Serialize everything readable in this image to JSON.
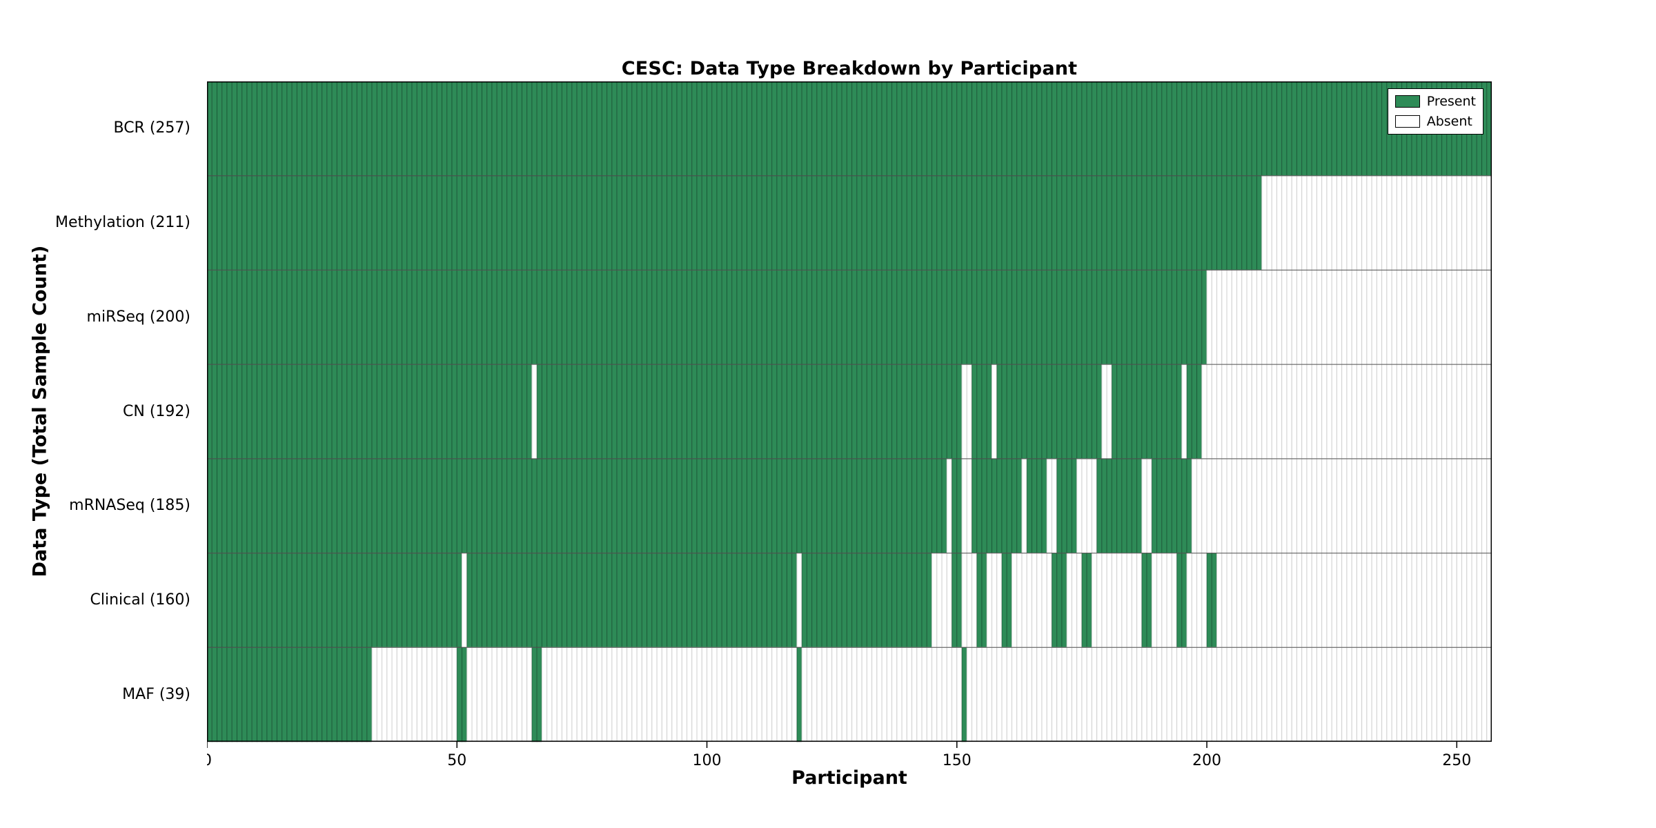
{
  "figure": {
    "background": "#ffffff"
  },
  "chart_data": {
    "type": "heatmap",
    "title": "CESC: Data Type Breakdown by Participant",
    "xlabel": "Participant",
    "ylabel": "Data Type (Total Sample Count)",
    "xlim": [
      0,
      257
    ],
    "x_ticks": [
      0,
      50,
      100,
      150,
      200,
      250
    ],
    "grid": "row-separators",
    "legend": {
      "position": "upper-right",
      "entries": [
        {
          "label": "Present",
          "color": "#2e8b57"
        },
        {
          "label": "Absent",
          "color": "#ffffff"
        }
      ]
    },
    "colors": {
      "present": "#2e8b57",
      "absent": "#ffffff",
      "present_cell_edge": "rgba(15,60,38,0.5)",
      "absent_cell_edge": "#cfcfcf",
      "row_separator": "#555555",
      "axis_border": "#000000"
    },
    "rows": [
      {
        "label": "BCR (257)",
        "data_type": "BCR",
        "total": 257,
        "present_ranges": [
          [
            0,
            257
          ]
        ]
      },
      {
        "label": "Methylation (211)",
        "data_type": "Methylation",
        "total": 211,
        "present_ranges": [
          [
            0,
            211
          ]
        ]
      },
      {
        "label": "miRSeq (200)",
        "data_type": "miRSeq",
        "total": 200,
        "present_ranges": [
          [
            0,
            200
          ]
        ]
      },
      {
        "label": "CN (192)",
        "data_type": "CN",
        "total": 192,
        "present_ranges": [
          [
            0,
            65
          ],
          [
            66,
            151
          ],
          [
            153,
            157
          ],
          [
            158,
            179
          ],
          [
            181,
            195
          ],
          [
            196,
            199
          ]
        ]
      },
      {
        "label": "mRNASeq (185)",
        "data_type": "mRNASeq",
        "total": 185,
        "present_ranges": [
          [
            0,
            148
          ],
          [
            149,
            151
          ],
          [
            153,
            163
          ],
          [
            164,
            168
          ],
          [
            170,
            174
          ],
          [
            178,
            187
          ],
          [
            189,
            197
          ]
        ]
      },
      {
        "label": "Clinical (160)",
        "data_type": "Clinical",
        "total": 160,
        "present_ranges": [
          [
            0,
            51
          ],
          [
            52,
            118
          ],
          [
            119,
            145
          ],
          [
            149,
            151
          ],
          [
            154,
            156
          ],
          [
            159,
            161
          ],
          [
            169,
            172
          ],
          [
            175,
            177
          ],
          [
            187,
            189
          ],
          [
            194,
            196
          ],
          [
            200,
            202
          ]
        ]
      },
      {
        "label": "MAF (39)",
        "data_type": "MAF",
        "total": 39,
        "present_ranges": [
          [
            0,
            33
          ],
          [
            50,
            52
          ],
          [
            65,
            67
          ],
          [
            118,
            119
          ],
          [
            151,
            152
          ]
        ]
      }
    ]
  }
}
